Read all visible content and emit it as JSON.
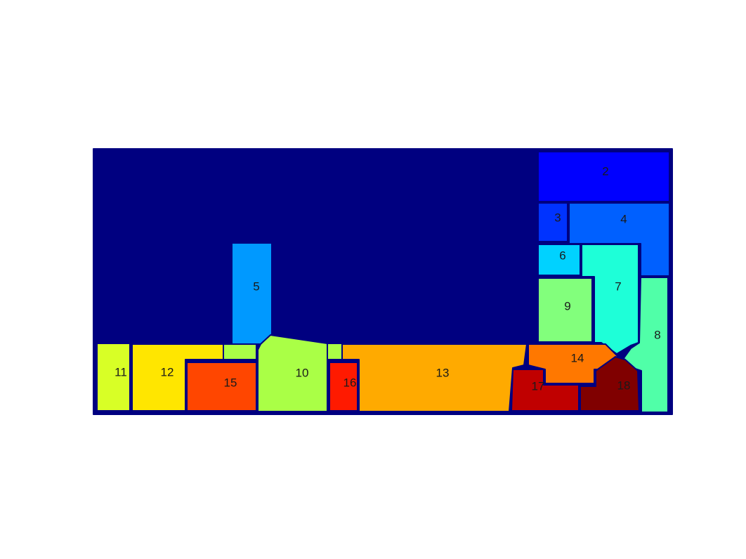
{
  "map": {
    "background_color": "#000080",
    "border_color": "#000080",
    "regions": [
      {
        "id": "1",
        "label": "",
        "color": "#000080"
      },
      {
        "id": "2",
        "label": "2",
        "color": "#0000ff"
      },
      {
        "id": "3",
        "label": "3",
        "color": "#0033ff"
      },
      {
        "id": "4",
        "label": "4",
        "color": "#0060ff"
      },
      {
        "id": "5",
        "label": "5",
        "color": "#0099ff"
      },
      {
        "id": "6",
        "label": "6",
        "color": "#00d2ff"
      },
      {
        "id": "7",
        "label": "7",
        "color": "#1effd8"
      },
      {
        "id": "8",
        "label": "8",
        "color": "#50ffa8"
      },
      {
        "id": "9",
        "label": "9",
        "color": "#82ff7c"
      },
      {
        "id": "10",
        "label": "10",
        "color": "#aaff46"
      },
      {
        "id": "11",
        "label": "11",
        "color": "#d8ff26"
      },
      {
        "id": "12",
        "label": "12",
        "color": "#ffe600"
      },
      {
        "id": "13",
        "label": "13",
        "color": "#ffaa00"
      },
      {
        "id": "14",
        "label": "14",
        "color": "#ff7800"
      },
      {
        "id": "15",
        "label": "15",
        "color": "#ff4600"
      },
      {
        "id": "16",
        "label": "16",
        "color": "#ff1a00"
      },
      {
        "id": "17",
        "label": "17",
        "color": "#c00000"
      },
      {
        "id": "18",
        "label": "18",
        "color": "#800000"
      }
    ]
  }
}
